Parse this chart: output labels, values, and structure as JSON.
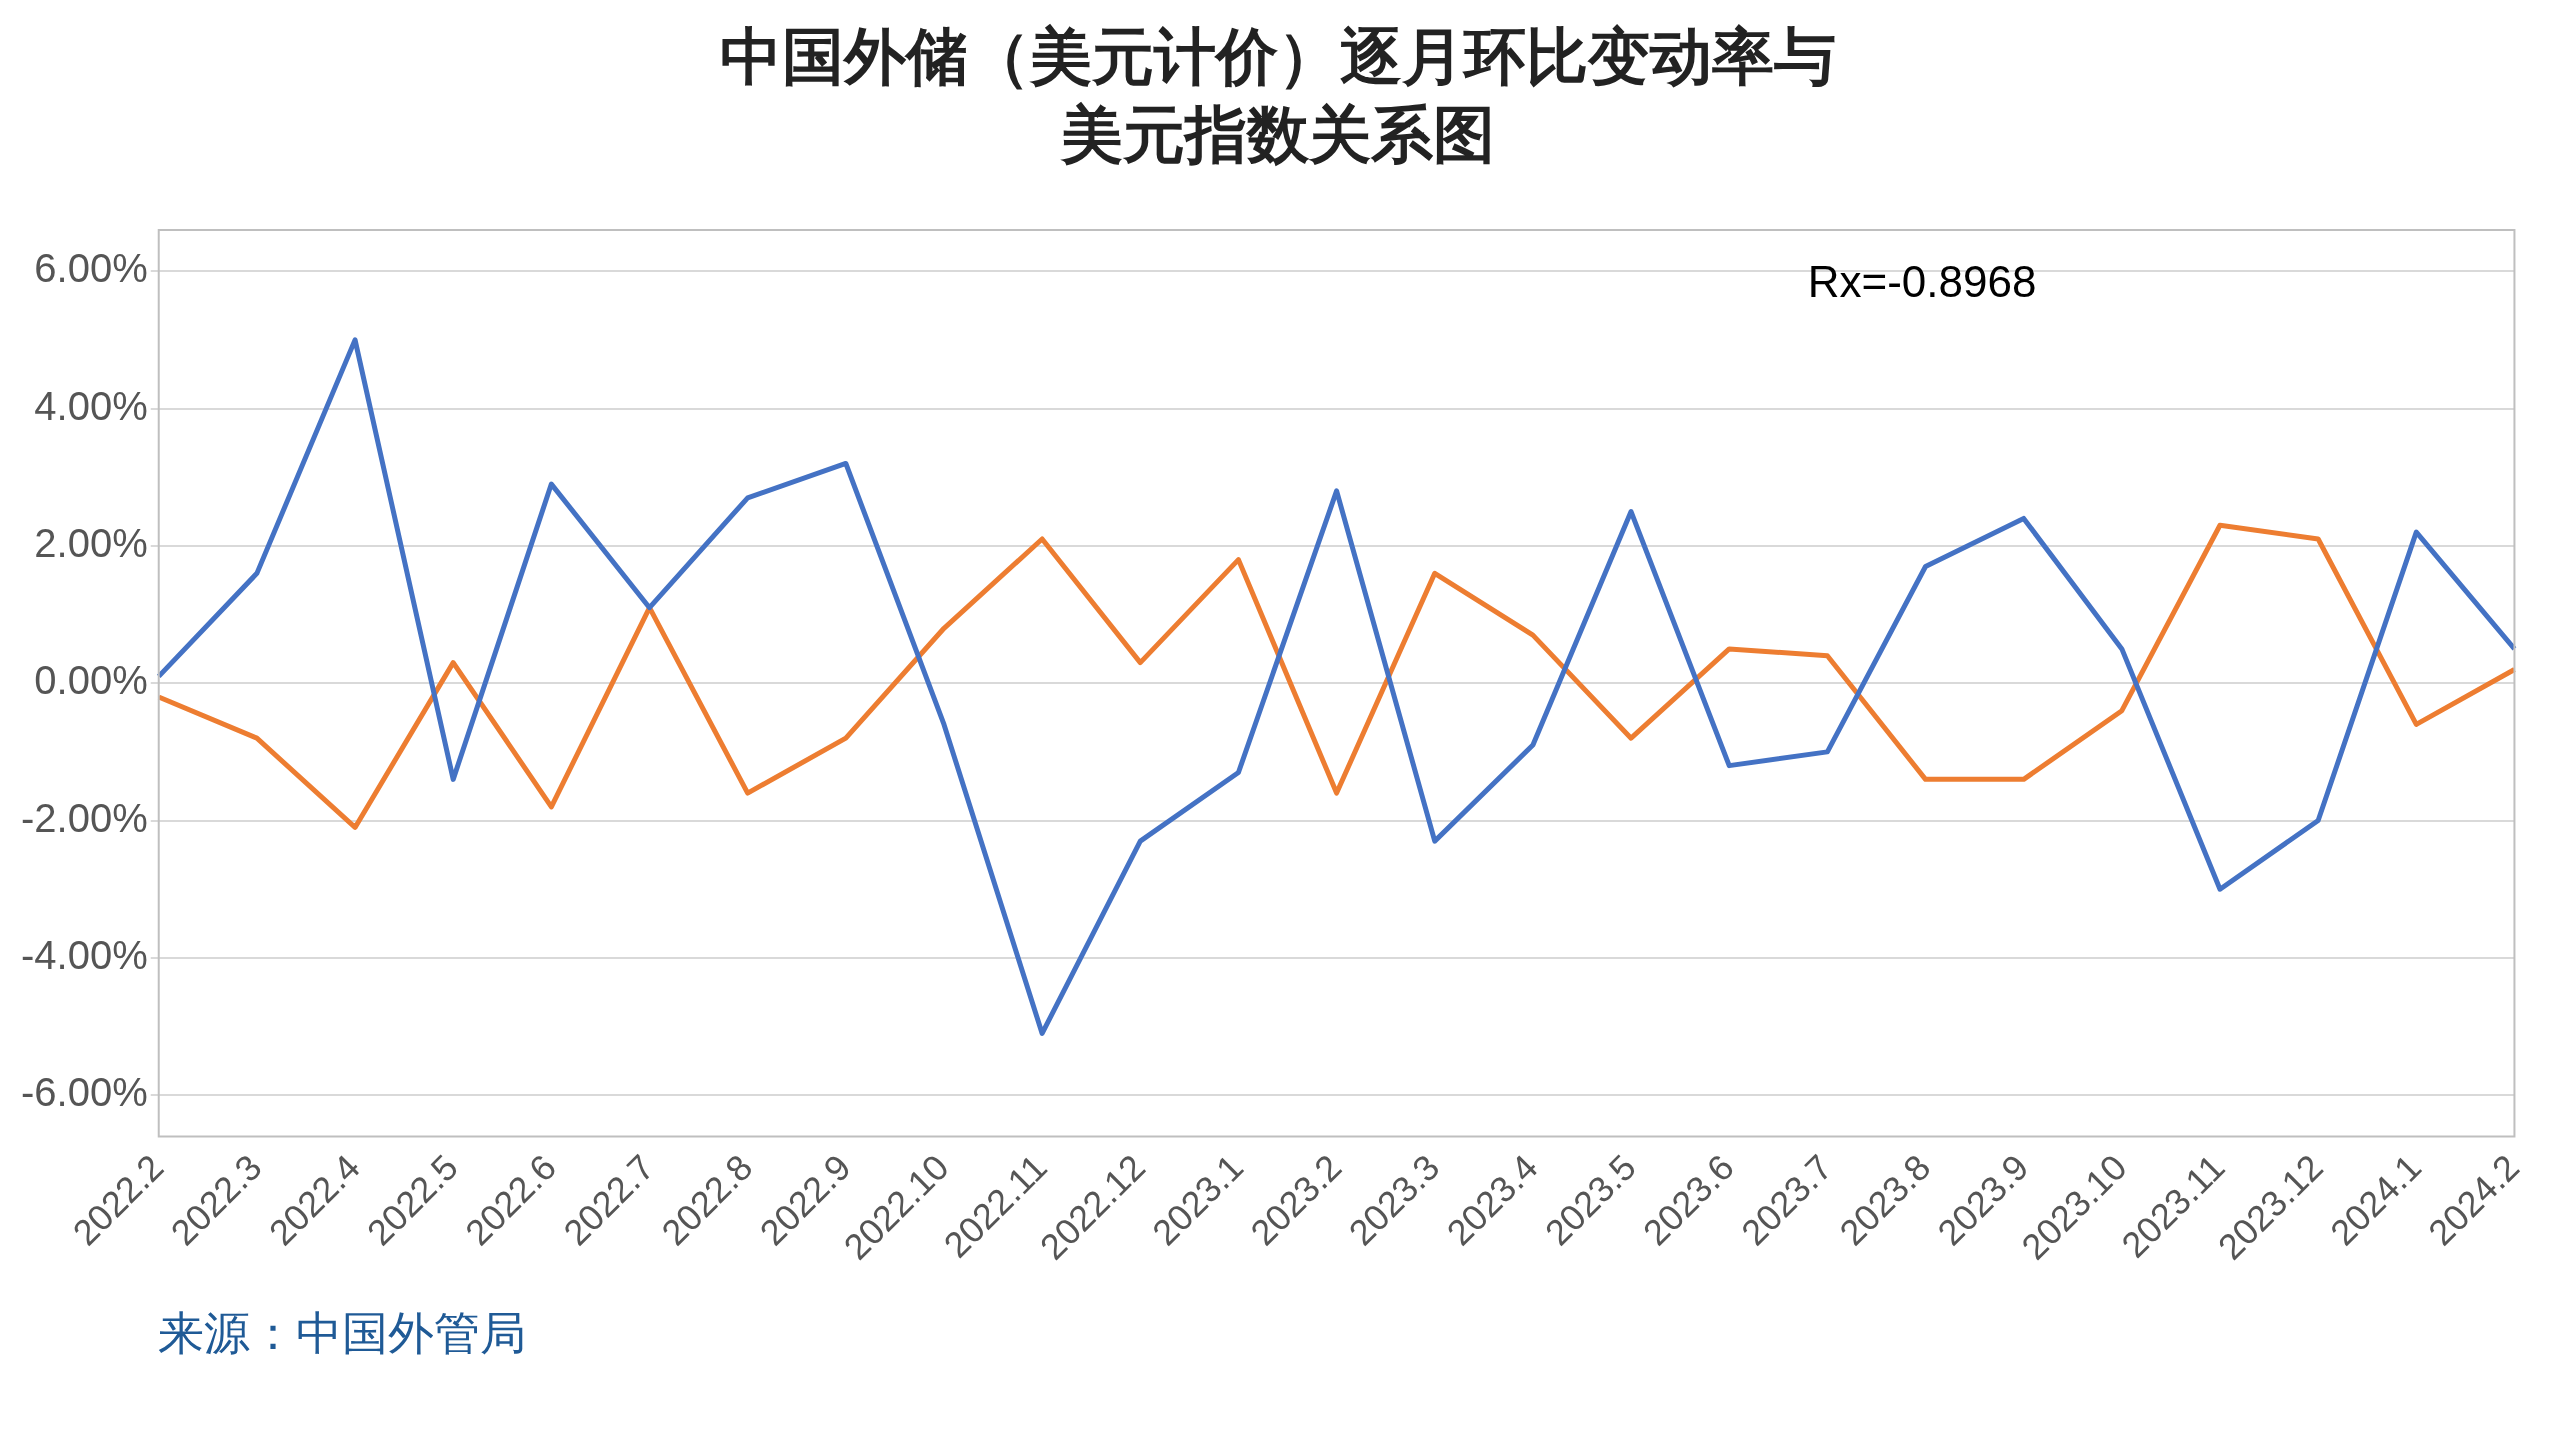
{
  "chart_data": {
    "type": "line",
    "title": "中国外储（美元计价）逐月环比变动率与美元指数关系图",
    "categories": [
      "2022.2",
      "2022.3",
      "2022.4",
      "2022.5",
      "2022.6",
      "2022.7",
      "2022.8",
      "2022.9",
      "2022.10",
      "2022.11",
      "2022.12",
      "2023.1",
      "2023.2",
      "2023.3",
      "2023.4",
      "2023.5",
      "2023.6",
      "2023.7",
      "2023.8",
      "2023.9",
      "2023.10",
      "2023.11",
      "2023.12",
      "2024.1",
      "2024.2"
    ],
    "series": [
      {
        "color": "#4472c4",
        "values": [
          0.1,
          1.6,
          5.0,
          -1.4,
          2.9,
          1.1,
          2.7,
          3.2,
          -0.6,
          -5.1,
          -2.3,
          -1.3,
          2.8,
          -2.3,
          -0.9,
          2.5,
          -1.2,
          -1.0,
          1.7,
          2.4,
          0.5,
          -3.0,
          -2.0,
          2.2,
          0.5
        ]
      },
      {
        "color": "#ed7d31",
        "values": [
          -0.2,
          -0.8,
          -2.1,
          0.3,
          -1.8,
          1.1,
          -1.6,
          -0.8,
          0.8,
          2.1,
          0.3,
          1.8,
          -1.6,
          1.6,
          0.7,
          -0.8,
          0.5,
          0.4,
          -1.4,
          -1.4,
          -0.4,
          2.3,
          2.1,
          -0.6,
          0.2
        ]
      }
    ],
    "ylim": [
      -6.6,
      6.6
    ],
    "yticks": [
      {
        "value": -6,
        "label": "-6.00%"
      },
      {
        "value": -4,
        "label": "-4.00%"
      },
      {
        "value": -2,
        "label": "-2.00%"
      },
      {
        "value": 0,
        "label": "0.00%"
      },
      {
        "value": 2,
        "label": "2.00%"
      },
      {
        "value": 4,
        "label": "4.00%"
      },
      {
        "value": 6,
        "label": "6.00%"
      }
    ],
    "grid": "y",
    "legend": false,
    "marker": "none",
    "line_style": "solid",
    "annotations": [
      "Rx=-0.8968",
      "来源：中国外管局"
    ]
  }
}
